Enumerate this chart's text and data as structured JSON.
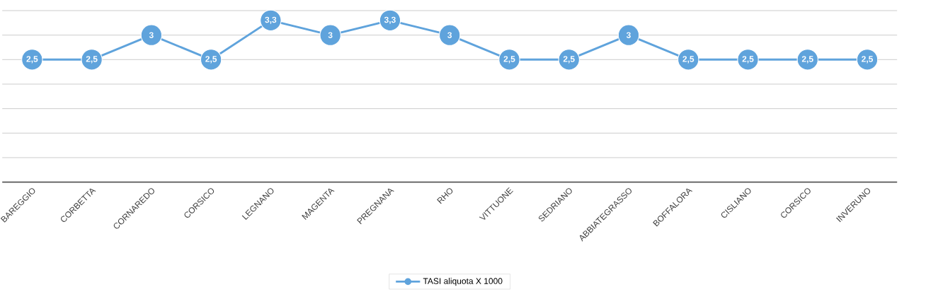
{
  "chart_data": {
    "type": "line",
    "categories": [
      "BAREGGIO",
      "CORBETTA",
      "CORNAREDO",
      "CORSICO",
      "LEGNANO",
      "MAGENTA",
      "PREGNANA",
      "RHO",
      "VITTUONE",
      "SEDRIANO",
      "ABBIATEGRASSO",
      "BOFFALORA",
      "CISLIANO",
      "CORSICO",
      "INVERUNO"
    ],
    "series": [
      {
        "name": "TASI aliquota X 1000",
        "color": "#5fa3dc",
        "values": [
          2.5,
          2.5,
          3,
          2.5,
          3.3,
          3,
          3.3,
          3,
          2.5,
          2.5,
          3,
          2.5,
          2.5,
          2.5,
          2.5
        ],
        "value_labels": [
          "2,5",
          "2,5",
          "3",
          "2,5",
          "3,3",
          "3",
          "3,3",
          "3",
          "2,5",
          "2,5",
          "3",
          "2,5",
          "2,5",
          "2,5",
          "2,5"
        ]
      }
    ],
    "ylim": [
      0,
      3.5
    ],
    "tick_labels": "x",
    "grid": "y",
    "legend": "bottom",
    "marker": "circle",
    "line_style": "solid"
  }
}
